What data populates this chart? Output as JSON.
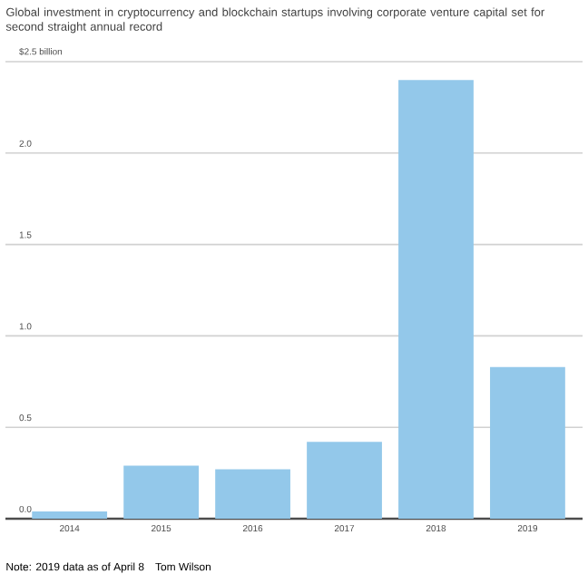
{
  "chart_data": {
    "type": "bar",
    "title": "Global investment in cryptocurrency and blockchain startups involving corporate venture capital set for second straight annual record",
    "categories": [
      "2014",
      "2015",
      "2016",
      "2017",
      "2018",
      "2019"
    ],
    "values": [
      0.04,
      0.29,
      0.27,
      0.42,
      2.4,
      0.83
    ],
    "color": "#93c8ea",
    "ylim": [
      0,
      2.5
    ],
    "yticks": [
      {
        "value": 0,
        "label": "0.0"
      },
      {
        "value": 0.5,
        "label": "0.5"
      },
      {
        "value": 1,
        "label": "1.0"
      },
      {
        "value": 1.5,
        "label": "1.5"
      },
      {
        "value": 2,
        "label": "2.0"
      },
      {
        "value": 2.5,
        "label": "$2.5 billion"
      }
    ],
    "grid": "y",
    "annotations": [
      "Note: 2019 data as of April 8",
      "Tom Wilson"
    ]
  }
}
